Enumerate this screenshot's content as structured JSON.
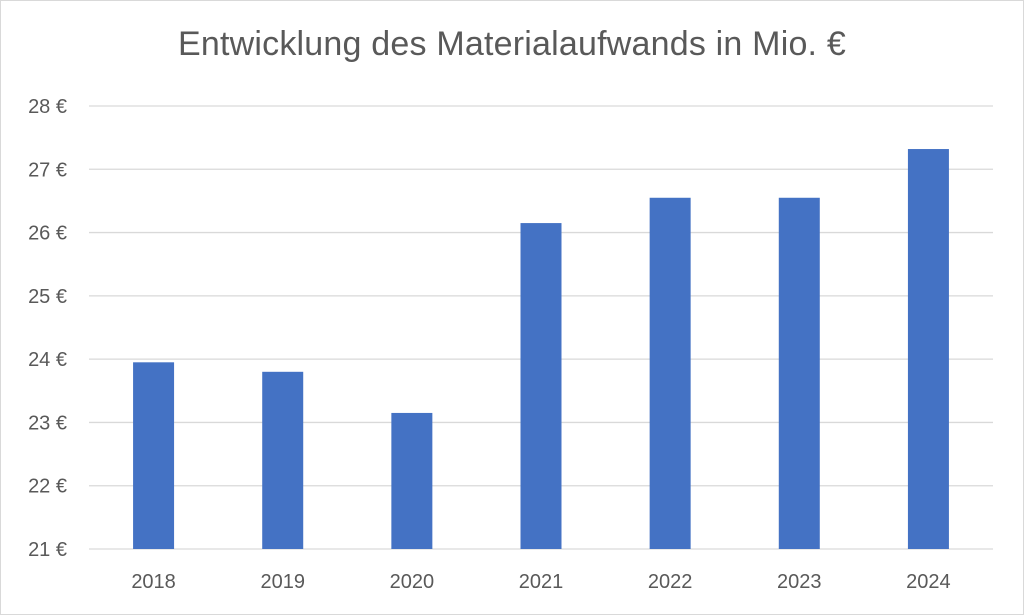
{
  "chart_data": {
    "type": "bar",
    "title": "Entwicklung des Materialaufwands in Mio. €",
    "categories": [
      "2018",
      "2019",
      "2020",
      "2021",
      "2022",
      "2023",
      "2024"
    ],
    "values": [
      23.95,
      23.8,
      23.15,
      26.15,
      26.55,
      26.55,
      27.32
    ],
    "xlabel": "",
    "ylabel": "",
    "ylim": [
      21,
      28
    ],
    "y_ticks": [
      21,
      22,
      23,
      24,
      25,
      26,
      27,
      28
    ],
    "y_tick_labels": [
      "21 €",
      "22 €",
      "23 €",
      "24 €",
      "25 €",
      "26 €",
      "27 €",
      "28 €"
    ],
    "grid": true,
    "legend": "none",
    "bar_color": "#4472C4",
    "grid_color": "#d9d9d9"
  }
}
